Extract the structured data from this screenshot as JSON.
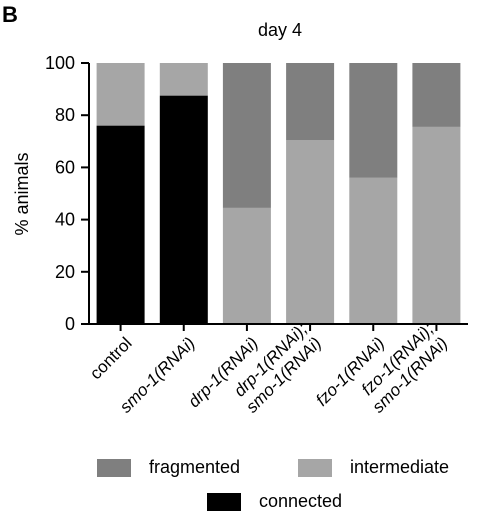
{
  "panel_label": "B",
  "chart_data": {
    "type": "bar",
    "stacked": true,
    "title": "day 4",
    "xlabel": "",
    "ylabel": "% animals",
    "ylim": [
      0,
      100
    ],
    "yticks": [
      0,
      20,
      40,
      60,
      80,
      100
    ],
    "categories": [
      [
        "control"
      ],
      [
        "smo-1(RNAi)"
      ],
      [
        "drp-1(RNAi)"
      ],
      [
        "drp-1(RNAi);",
        "smo-1(RNAi)"
      ],
      [
        "fzo-1(RNAi)"
      ],
      [
        "fzo-1(RNAi);",
        "smo-1(RNAi)"
      ]
    ],
    "series": [
      {
        "name": "connected",
        "color": "#000000",
        "values": [
          76,
          87.5,
          0,
          0,
          0,
          0
        ]
      },
      {
        "name": "intermediate",
        "color": "#a6a6a6",
        "values": [
          24,
          12.5,
          44.5,
          70.5,
          56,
          75.5
        ]
      },
      {
        "name": "fragmented",
        "color": "#7f7f7f",
        "values": [
          0,
          0,
          55.5,
          29.5,
          44,
          24.5
        ]
      }
    ]
  },
  "legend": {
    "fragmented": {
      "label": "fragmented",
      "color": "#7f7f7f"
    },
    "intermediate": {
      "label": "intermediate",
      "color": "#a6a6a6"
    },
    "connected": {
      "label": "connected",
      "color": "#000000"
    }
  }
}
